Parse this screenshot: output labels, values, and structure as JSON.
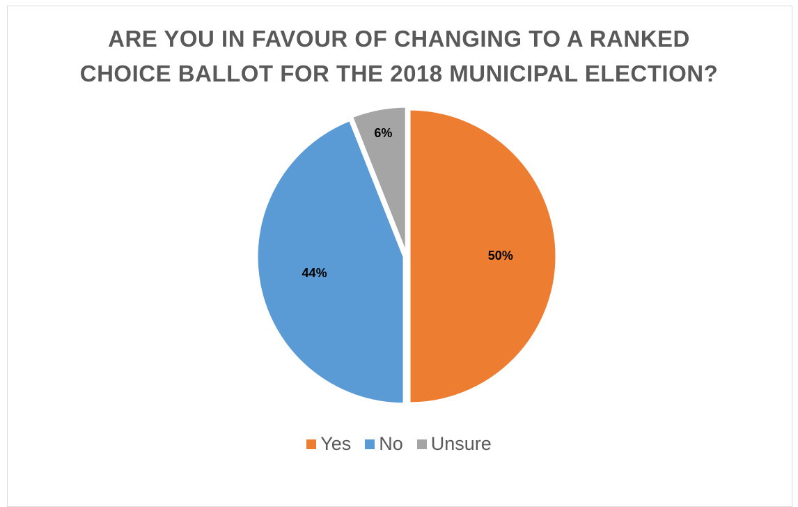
{
  "chart_data": {
    "type": "pie",
    "title_lines": [
      "ARE YOU IN FAVOUR OF CHANGING TO A RANKED",
      "CHOICE BALLOT FOR THE 2018 MUNICIPAL ELECTION?"
    ],
    "slices": [
      {
        "label": "Yes",
        "value": 50,
        "display": "50%",
        "color": "#ed7d31"
      },
      {
        "label": "No",
        "value": 44,
        "display": "44%",
        "color": "#5b9bd5"
      },
      {
        "label": "Unsure",
        "value": 6,
        "display": "6%",
        "color": "#a5a5a5"
      }
    ],
    "legend_position": "bottom"
  }
}
